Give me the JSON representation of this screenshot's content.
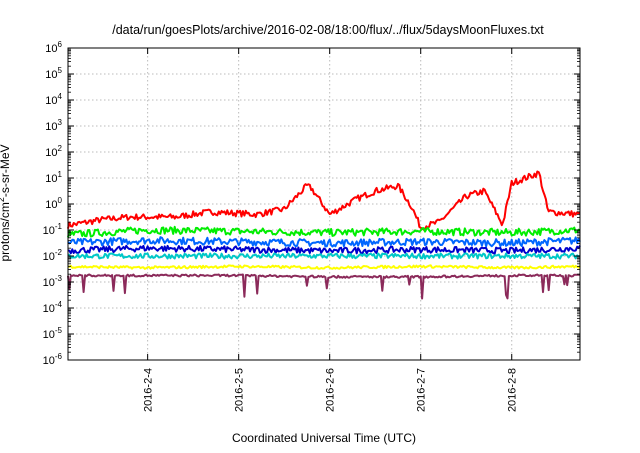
{
  "chart_data": {
    "type": "line",
    "title": "/data/run/goesPlots/archive/2016-02-08/18:00/flux/../flux/5daysMoonFluxes.txt",
    "xlabel": "Coordinated Universal Time (UTC)",
    "ylabel": {
      "prefix": "protons/cm",
      "sup": "2",
      "suffix": "-s-sr-MeV"
    },
    "y_scale": "log",
    "ylim_exponent": [
      -6,
      6
    ],
    "y_ticks": [
      {
        "base": "10",
        "exp": "6"
      },
      {
        "base": "10",
        "exp": "5"
      },
      {
        "base": "10",
        "exp": "4"
      },
      {
        "base": "10",
        "exp": "3"
      },
      {
        "base": "10",
        "exp": "2"
      },
      {
        "base": "10",
        "exp": "1"
      },
      {
        "base": "10",
        "exp": "0"
      },
      {
        "base": "10",
        "exp": "-1"
      },
      {
        "base": "10",
        "exp": "-2"
      },
      {
        "base": "10",
        "exp": "-3"
      },
      {
        "base": "10",
        "exp": "-4"
      },
      {
        "base": "10",
        "exp": "-5"
      },
      {
        "base": "10",
        "exp": "-6"
      }
    ],
    "xlim": [
      "2016-02-03 03:00",
      "2016-02-08 18:00"
    ],
    "x_ticks": [
      "2016-2-4",
      "2016-2-5",
      "2016-2-6",
      "2016-2-7",
      "2016-2-8"
    ],
    "grid": true,
    "legend": "none",
    "colors": {
      "red": "#ff0000",
      "green": "#00ee00",
      "blue": "#0066ff",
      "navy": "#0000cc",
      "cyan": "#00c8c8",
      "yellow": "#ffff00",
      "purple": "#8b2a5a",
      "grid": "#bbbbbb",
      "axis": "#000000"
    },
    "series": [
      {
        "color": "#ff0000",
        "approx_log10": [
          [
            3.0,
            -0.9
          ],
          [
            3.5,
            -0.6
          ],
          [
            3.8,
            -0.5
          ],
          [
            4.3,
            -0.5
          ],
          [
            4.7,
            -0.3
          ],
          [
            5.2,
            -0.4
          ],
          [
            5.5,
            -0.2
          ],
          [
            5.75,
            0.7
          ],
          [
            5.8,
            0.6
          ],
          [
            6.0,
            -0.4
          ],
          [
            6.3,
            0.2
          ],
          [
            6.5,
            0.5
          ],
          [
            6.75,
            0.7
          ],
          [
            6.9,
            -0.1
          ],
          [
            7.0,
            -0.9
          ],
          [
            7.2,
            -0.7
          ],
          [
            7.5,
            0.3
          ],
          [
            7.7,
            0.5
          ],
          [
            7.9,
            -0.8
          ],
          [
            8.0,
            0.8
          ],
          [
            8.3,
            1.2
          ],
          [
            8.4,
            -0.3
          ],
          [
            8.75,
            -0.4
          ]
        ]
      },
      {
        "color": "#00ee00",
        "approx_log10": [
          [
            3.0,
            -1.2
          ],
          [
            4.0,
            -1.0
          ],
          [
            5.0,
            -1.05
          ],
          [
            6.0,
            -1.1
          ],
          [
            7.0,
            -1.05
          ],
          [
            8.0,
            -1.1
          ],
          [
            8.75,
            -1.0
          ]
        ]
      },
      {
        "color": "#0066ff",
        "approx_log10": [
          [
            3.0,
            -1.5
          ],
          [
            4.0,
            -1.4
          ],
          [
            5.0,
            -1.45
          ],
          [
            6.0,
            -1.5
          ],
          [
            7.0,
            -1.45
          ],
          [
            8.0,
            -1.5
          ],
          [
            8.75,
            -1.4
          ]
        ]
      },
      {
        "color": "#0000cc",
        "approx_log10": [
          [
            3.0,
            -1.8
          ],
          [
            4.0,
            -1.7
          ],
          [
            5.0,
            -1.75
          ],
          [
            6.0,
            -1.8
          ],
          [
            7.0,
            -1.75
          ],
          [
            8.0,
            -1.8
          ],
          [
            8.75,
            -1.7
          ]
        ]
      },
      {
        "color": "#00c8c8",
        "approx_log10": [
          [
            3.0,
            -2.0
          ],
          [
            4.0,
            -2.0
          ],
          [
            5.0,
            -2.0
          ],
          [
            6.0,
            -2.0
          ],
          [
            7.0,
            -2.0
          ],
          [
            8.0,
            -2.0
          ],
          [
            8.75,
            -2.0
          ]
        ]
      },
      {
        "color": "#ffff00",
        "approx_log10": [
          [
            3.0,
            -2.4
          ],
          [
            4.0,
            -2.45
          ],
          [
            5.0,
            -2.4
          ],
          [
            6.0,
            -2.45
          ],
          [
            7.0,
            -2.4
          ],
          [
            8.0,
            -2.45
          ],
          [
            8.75,
            -2.4
          ]
        ]
      },
      {
        "color": "#8b2a5a",
        "approx_log10": [
          [
            3.0,
            -2.75
          ],
          [
            4.0,
            -2.75
          ],
          [
            5.0,
            -2.75
          ],
          [
            6.0,
            -2.8
          ],
          [
            7.0,
            -2.8
          ],
          [
            8.0,
            -2.75
          ],
          [
            8.75,
            -2.75
          ]
        ]
      }
    ]
  }
}
